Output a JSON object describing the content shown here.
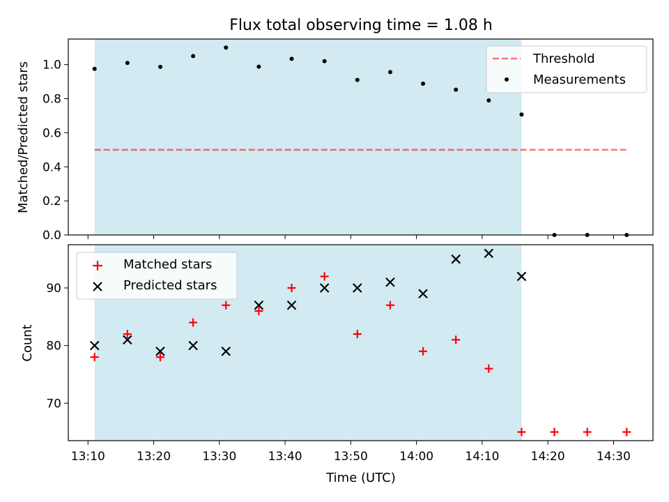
{
  "title": "Flux total observing time = 1.08 h",
  "colors": {
    "span": "#add8e6",
    "threshold": "#ff0000",
    "measurement": "#000000",
    "matched": "#ff0000",
    "predicted": "#000000"
  },
  "chart_data": [
    {
      "type": "scatter",
      "title": "Flux total observing time = 1.08 h",
      "ylabel": "Matched/Predicted stars",
      "xlabel": "",
      "ylim": [
        0,
        1.15
      ],
      "yticks": [
        "0.0",
        "0.2",
        "0.4",
        "0.6",
        "0.8",
        "1.0"
      ],
      "observing_span": [
        "13:11",
        "14:16"
      ],
      "legend_placement": "top-right",
      "threshold": {
        "name": "Threshold",
        "value": 0.5,
        "x_range": [
          "13:11",
          "14:32"
        ]
      },
      "series": [
        {
          "name": "Measurements",
          "x": [
            "13:11",
            "13:16",
            "13:21",
            "13:26",
            "13:31",
            "13:36",
            "13:41",
            "13:46",
            "13:51",
            "13:56",
            "14:01",
            "14:06",
            "14:11",
            "14:16",
            "14:21",
            "14:26",
            "14:32"
          ],
          "y": [
            0.975,
            1.01,
            0.987,
            1.05,
            1.1,
            0.988,
            1.034,
            1.02,
            0.91,
            0.956,
            0.888,
            0.853,
            0.79,
            0.707,
            0.0,
            0.0,
            0.0
          ]
        }
      ]
    },
    {
      "type": "scatter",
      "title": "",
      "xlabel": "Time (UTC)",
      "ylabel": "Count",
      "xlim": [
        "13:07",
        "14:36"
      ],
      "ylim": [
        63.5,
        97.5
      ],
      "xticks": [
        "13:10",
        "13:20",
        "13:30",
        "13:40",
        "13:50",
        "14:00",
        "14:10",
        "14:20",
        "14:30"
      ],
      "yticks": [
        "70",
        "80",
        "90"
      ],
      "observing_span": [
        "13:11",
        "14:16"
      ],
      "legend_placement": "top-left",
      "series": [
        {
          "name": "Matched stars",
          "marker": "+",
          "x": [
            "13:11",
            "13:16",
            "13:21",
            "13:26",
            "13:31",
            "13:36",
            "13:41",
            "13:46",
            "13:51",
            "13:56",
            "14:01",
            "14:06",
            "14:11",
            "14:16",
            "14:21",
            "14:26",
            "14:32"
          ],
          "y": [
            78,
            82,
            78,
            84,
            87,
            86,
            90,
            92,
            82,
            87,
            79,
            81,
            76,
            65,
            65,
            65,
            65
          ]
        },
        {
          "name": "Predicted stars",
          "marker": "x",
          "x": [
            "13:11",
            "13:16",
            "13:21",
            "13:26",
            "13:31",
            "13:36",
            "13:41",
            "13:46",
            "13:51",
            "13:56",
            "14:01",
            "14:06",
            "14:11",
            "14:16"
          ],
          "y": [
            80,
            81,
            79,
            80,
            79,
            87,
            87,
            90,
            90,
            91,
            89,
            95,
            96,
            92
          ]
        }
      ]
    }
  ]
}
